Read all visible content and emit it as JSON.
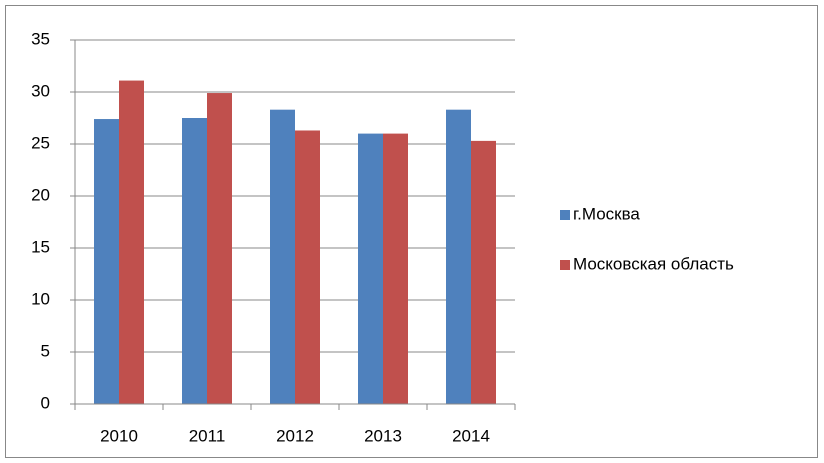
{
  "chart_data": {
    "type": "bar",
    "categories": [
      "2010",
      "2011",
      "2012",
      "2013",
      "2014"
    ],
    "series": [
      {
        "name": "г.Москва",
        "color": "#4f81bd",
        "values": [
          27.4,
          27.5,
          28.3,
          26.0,
          28.3
        ]
      },
      {
        "name": "Московская область",
        "color": "#c0504d",
        "values": [
          31.1,
          29.9,
          26.3,
          26.0,
          25.3
        ]
      }
    ],
    "ylim": [
      0,
      35
    ],
    "yticks": [
      0,
      5,
      10,
      15,
      20,
      25,
      30,
      35
    ],
    "grid": true,
    "legend": "right"
  }
}
